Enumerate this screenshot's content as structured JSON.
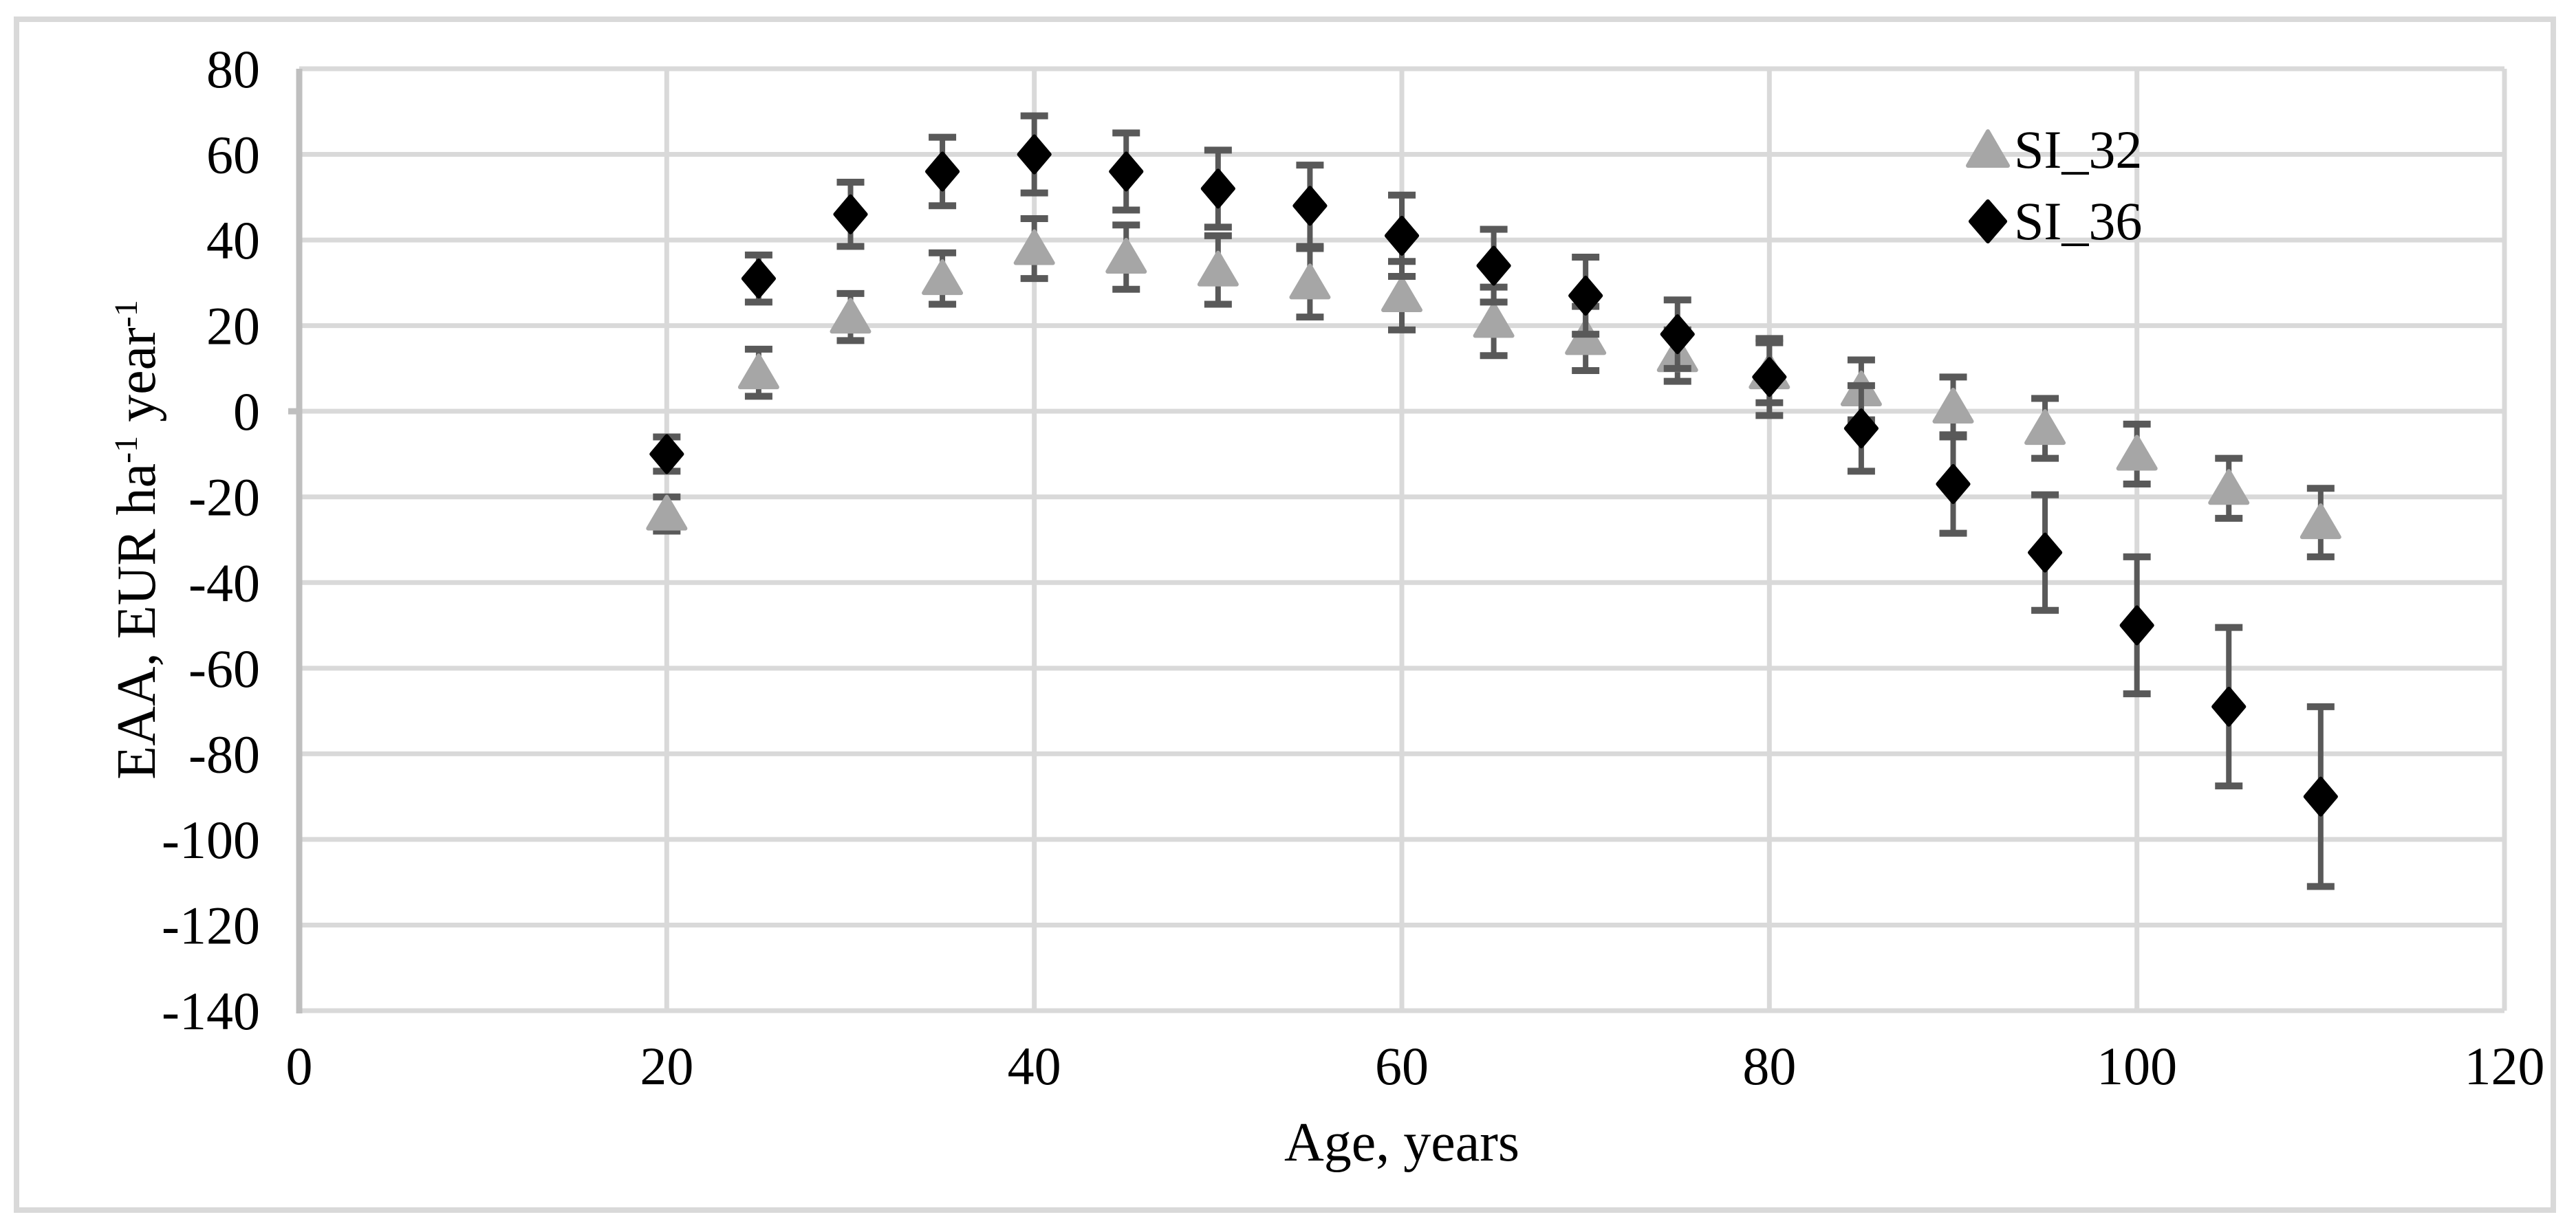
{
  "figure": {
    "background": "#ffffff",
    "frame_color": "#d9d9d9"
  },
  "chart_data": {
    "type": "scatter",
    "title": "",
    "xlabel": "Age, years",
    "ylabel": "EAA, EUR ha⁻¹ year⁻¹",
    "ylabel_parts": [
      {
        "t": "EAA, EUR ha"
      },
      {
        "t": "-1",
        "sup": true
      },
      {
        "t": " year"
      },
      {
        "t": "-1",
        "sup": true
      }
    ],
    "xlim": [
      0,
      120
    ],
    "xtick_step": 20,
    "xtick_labels": [
      "0",
      "20",
      "40",
      "60",
      "80",
      "100",
      "120"
    ],
    "ylim": [
      -140,
      80
    ],
    "ytick_step": 20,
    "ytick_labels": [
      "-140",
      "-120",
      "-100",
      "-80",
      "-60",
      "-40",
      "-20",
      "0",
      "20",
      "40",
      "60",
      "80"
    ],
    "grid": true,
    "gridline_color": "#d9d9d9",
    "axis_line_color": "#bfbfbf",
    "error_bar_color": "#595959",
    "legend_position": "upper-right",
    "x": [
      20,
      25,
      30,
      35,
      40,
      45,
      50,
      55,
      60,
      65,
      70,
      75,
      80,
      85,
      90,
      95,
      100,
      105,
      110
    ],
    "series": [
      {
        "name": "SI_32",
        "marker": "triangle",
        "color": "#a6a6a6",
        "values": [
          -24,
          9,
          22,
          31,
          38,
          36,
          33,
          30,
          27,
          21,
          17,
          13,
          9,
          5,
          1,
          -4,
          -10,
          -18,
          -26
        ],
        "errors": [
          4,
          5.5,
          5.5,
          6,
          7,
          7.5,
          8,
          8,
          8,
          8,
          7.5,
          6,
          7,
          7,
          7,
          7,
          7,
          7,
          8
        ]
      },
      {
        "name": "SI_36",
        "marker": "diamond",
        "color": "#000000",
        "values": [
          -10,
          31,
          46,
          56,
          60,
          56,
          52,
          48,
          41,
          34,
          27,
          18,
          8,
          -4,
          -17,
          -33,
          -50,
          -69,
          -90
        ],
        "errors": [
          4,
          5.5,
          7.5,
          8,
          9,
          9,
          9,
          9.5,
          9.5,
          8.5,
          9,
          8,
          9,
          10,
          11.5,
          13.5,
          16,
          18.5,
          21
        ]
      }
    ],
    "legend": {
      "entries": [
        {
          "label": "SI_32",
          "marker": "triangle",
          "color": "#a6a6a6"
        },
        {
          "label": "SI_36",
          "marker": "diamond",
          "color": "#000000"
        }
      ]
    }
  }
}
